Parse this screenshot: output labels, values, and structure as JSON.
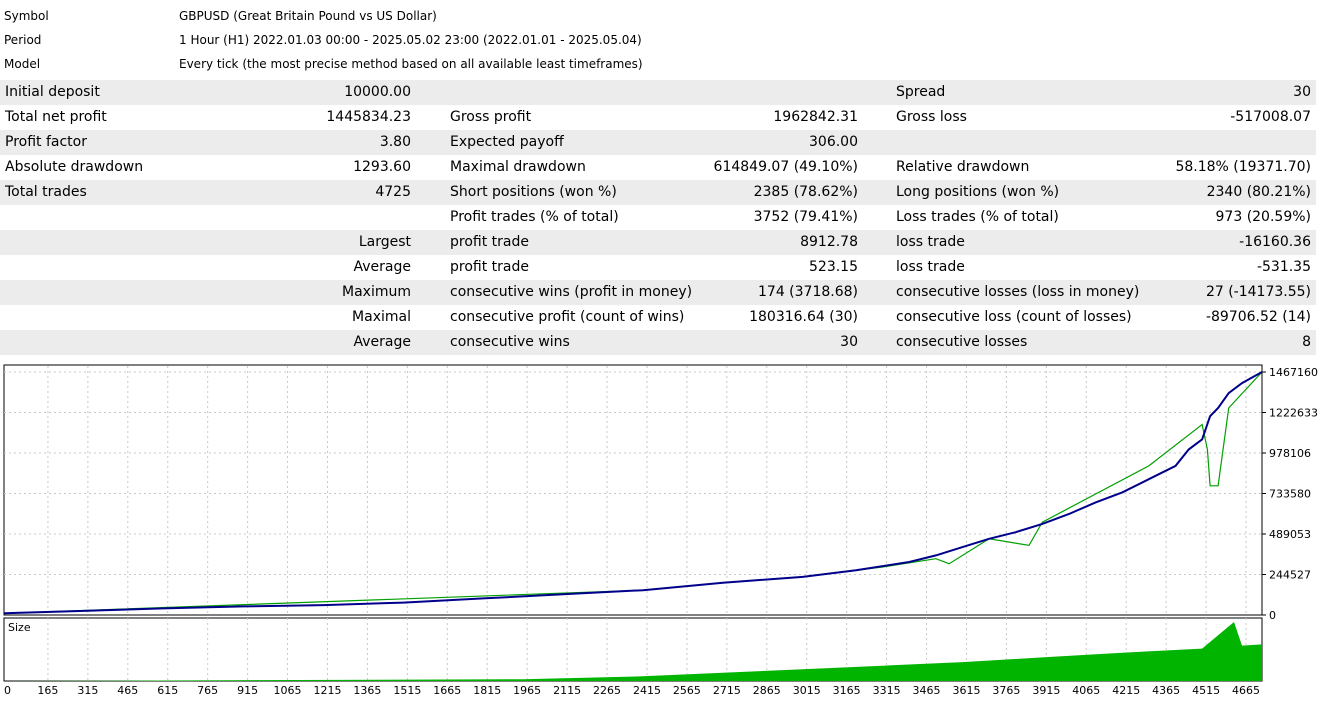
{
  "meta": {
    "symbol_label": "Symbol",
    "symbol_value": "GBPUSD (Great Britain Pound vs US Dollar)",
    "period_label": "Period",
    "period_value": "1 Hour (H1) 2022.01.03 00:00 - 2025.05.02 23:00 (2022.01.01 - 2025.05.04)",
    "model_label": "Model",
    "model_value": "Every tick (the most precise method based on all available least timeframes)"
  },
  "report": {
    "rows": [
      {
        "c1": "Initial deposit",
        "c2": "10000.00",
        "c3": "",
        "c4": "",
        "c5": "Spread",
        "c6": "30"
      },
      {
        "c1": "Total net profit",
        "c2": "1445834.23",
        "c3": "Gross profit",
        "c4": "1962842.31",
        "c5": "Gross loss",
        "c6": "-517008.07"
      },
      {
        "c1": "Profit factor",
        "c2": "3.80",
        "c3": "Expected payoff",
        "c4": "306.00",
        "c5": "",
        "c6": ""
      },
      {
        "c1": "Absolute drawdown",
        "c2": "1293.60",
        "c3": "Maximal drawdown",
        "c4": "614849.07 (49.10%)",
        "c5": "Relative drawdown",
        "c6": "58.18% (19371.70)"
      },
      {
        "c1": "Total trades",
        "c2": "4725",
        "c3": "Short positions (won %)",
        "c4": "2385 (78.62%)",
        "c5": "Long positions (won %)",
        "c6": "2340 (80.21%)"
      },
      {
        "c1": "",
        "c2": "",
        "c3": "Profit trades (% of total)",
        "c4": "3752 (79.41%)",
        "c5": "Loss trades (% of total)",
        "c6": "973 (20.59%)"
      },
      {
        "c1": "",
        "c2": "Largest",
        "c3": "profit trade",
        "c4": "8912.78",
        "c5": "loss trade",
        "c6": "-16160.36"
      },
      {
        "c1": "",
        "c2": "Average",
        "c3": "profit trade",
        "c4": "523.15",
        "c5": "loss trade",
        "c6": "-531.35"
      },
      {
        "c1": "",
        "c2": "Maximum",
        "c3": "consecutive wins (profit in money)",
        "c4": "174 (3718.68)",
        "c5": "consecutive losses (loss in money)",
        "c6": "27 (-14173.55)"
      },
      {
        "c1": "",
        "c2": "Maximal",
        "c3": "consecutive profit (count of wins)",
        "c4": "180316.64 (30)",
        "c5": "consecutive loss (count of losses)",
        "c6": "-89706.52 (14)"
      },
      {
        "c1": "",
        "c2": "Average",
        "c3": "consecutive wins",
        "c4": "30",
        "c5": "consecutive losses",
        "c6": "8"
      }
    ]
  },
  "chart_data": {
    "type": "line",
    "size_label": "Size",
    "y_ticks": [
      "1467160",
      "1222633",
      "978106",
      "733580",
      "489053",
      "244527",
      "0"
    ],
    "x_ticks": [
      "0",
      "165",
      "315",
      "465",
      "615",
      "765",
      "915",
      "1065",
      "1215",
      "1365",
      "1515",
      "1665",
      "1815",
      "1965",
      "2115",
      "2265",
      "2415",
      "2565",
      "2715",
      "2865",
      "3015",
      "3165",
      "3315",
      "3465",
      "3615",
      "3765",
      "3915",
      "4065",
      "4215",
      "4365",
      "4515",
      "4665"
    ],
    "ylim": [
      0,
      1467160
    ],
    "xlim": [
      0,
      4725
    ],
    "series": [
      {
        "name": "",
        "color": "#00008b",
        "x": [
          0,
          300,
          600,
          900,
          1200,
          1500,
          1800,
          2100,
          2400,
          2700,
          3000,
          3200,
          3400,
          3500,
          3600,
          3700,
          3800,
          3900,
          4000,
          4100,
          4200,
          4300,
          4400,
          4450,
          4500,
          4530,
          4560,
          4600,
          4650,
          4725
        ],
        "y": [
          10000,
          25000,
          40000,
          52000,
          60000,
          75000,
          100000,
          125000,
          150000,
          195000,
          230000,
          270000,
          320000,
          360000,
          410000,
          460000,
          500000,
          550000,
          610000,
          680000,
          740000,
          820000,
          900000,
          1000000,
          1060000,
          1200000,
          1250000,
          1340000,
          1400000,
          1467160
        ]
      },
      {
        "name": "",
        "color": "#00a000",
        "x": [
          0,
          2400,
          2700,
          3000,
          3300,
          3500,
          3550,
          3700,
          3850,
          3900,
          4300,
          4500,
          4520,
          4530,
          4560,
          4600,
          4725
        ],
        "y": [
          10000,
          150000,
          195000,
          230000,
          290000,
          340000,
          310000,
          460000,
          420000,
          560000,
          900000,
          1150000,
          1000000,
          780000,
          780000,
          1250000,
          1467160
        ]
      }
    ],
    "size_series": {
      "color": "#00b400",
      "x": [
        0,
        1950,
        2400,
        2700,
        3000,
        3300,
        3600,
        3900,
        4200,
        4500,
        4620,
        4650,
        4725
      ],
      "y": [
        0,
        0.03,
        0.08,
        0.14,
        0.2,
        0.26,
        0.32,
        0.4,
        0.48,
        0.55,
        1.0,
        0.6,
        0.62
      ]
    }
  }
}
